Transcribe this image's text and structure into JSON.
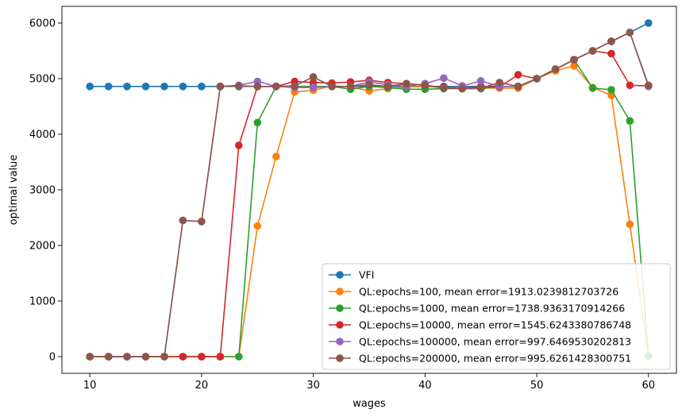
{
  "chart_data": {
    "type": "line",
    "title": "",
    "xlabel": "wages",
    "ylabel": "optimal value",
    "xlim": [
      7.5,
      62.5
    ],
    "ylim": [
      -300,
      6300
    ],
    "xticks": [
      10,
      20,
      30,
      40,
      50,
      60
    ],
    "yticks": [
      0,
      1000,
      2000,
      3000,
      4000,
      5000,
      6000
    ],
    "legend_position": "lower-right",
    "grid": false,
    "x": [
      10.0,
      11.67,
      13.33,
      15.0,
      16.67,
      18.33,
      20.0,
      21.67,
      23.33,
      25.0,
      26.67,
      28.33,
      30.0,
      31.67,
      33.33,
      35.0,
      36.67,
      38.33,
      40.0,
      41.67,
      43.33,
      45.0,
      46.67,
      48.33,
      50.0,
      51.67,
      53.33,
      55.0,
      56.67,
      58.33,
      60.0
    ],
    "series": [
      {
        "name": "VFI",
        "color": "#1f77b4",
        "values": [
          4860,
          4860,
          4860,
          4860,
          4860,
          4860,
          4860,
          4860,
          4860,
          4860,
          4860,
          4860,
          4860,
          4860,
          4860,
          4860,
          4860,
          4860,
          4860,
          4860,
          4860,
          4860,
          4860,
          4860,
          5000,
          5170,
          5340,
          5500,
          5670,
          5830,
          6000
        ]
      },
      {
        "name": "QL:epochs=100, mean error=1913.0239812703726",
        "color": "#ff7f0e",
        "values": [
          0,
          0,
          0,
          0,
          0,
          0,
          0,
          0,
          0,
          2350,
          3600,
          4760,
          4790,
          4870,
          4850,
          4780,
          4820,
          4850,
          4860,
          4840,
          4820,
          4830,
          4830,
          4830,
          5000,
          5140,
          5230,
          4840,
          4700,
          2380,
          10
        ]
      },
      {
        "name": "QL:epochs=1000, mean error=1738.9363170914266",
        "color": "#2ca02c",
        "values": [
          0,
          0,
          0,
          0,
          0,
          0,
          0,
          0,
          0,
          4210,
          4860,
          4860,
          4860,
          4860,
          4810,
          4860,
          4840,
          4810,
          4810,
          4820,
          4820,
          4820,
          4860,
          4860,
          5000,
          5170,
          5340,
          4830,
          4800,
          4240,
          10
        ]
      },
      {
        "name": "QL:epochs=10000, mean error=1545.6243380786748",
        "color": "#d62728",
        "values": [
          0,
          0,
          0,
          0,
          0,
          0,
          0,
          0,
          3800,
          4860,
          4860,
          4950,
          4930,
          4920,
          4940,
          4970,
          4930,
          4910,
          4880,
          4840,
          4830,
          4850,
          4850,
          5070,
          5000,
          5170,
          5340,
          5500,
          5450,
          4880,
          4870
        ]
      },
      {
        "name": "QL:epochs=100000, mean error=997.6469530202813",
        "color": "#9467bd",
        "values": [
          0,
          0,
          0,
          0,
          0,
          2450,
          2430,
          4860,
          4880,
          4950,
          4860,
          4840,
          4840,
          4860,
          4860,
          4940,
          4890,
          4860,
          4910,
          5010,
          4870,
          4960,
          4860,
          4860,
          5000,
          5170,
          5340,
          5500,
          5670,
          5830,
          4860
        ]
      },
      {
        "name": "QL:epochs=200000, mean error=995.6261428300751",
        "color": "#8c564b",
        "values": [
          0,
          0,
          0,
          0,
          0,
          2450,
          2430,
          4860,
          4870,
          4860,
          4860,
          4870,
          5030,
          4860,
          4860,
          4890,
          4860,
          4910,
          4880,
          4830,
          4820,
          4830,
          4930,
          4860,
          5000,
          5170,
          5340,
          5500,
          5670,
          5830,
          4880
        ]
      }
    ]
  }
}
